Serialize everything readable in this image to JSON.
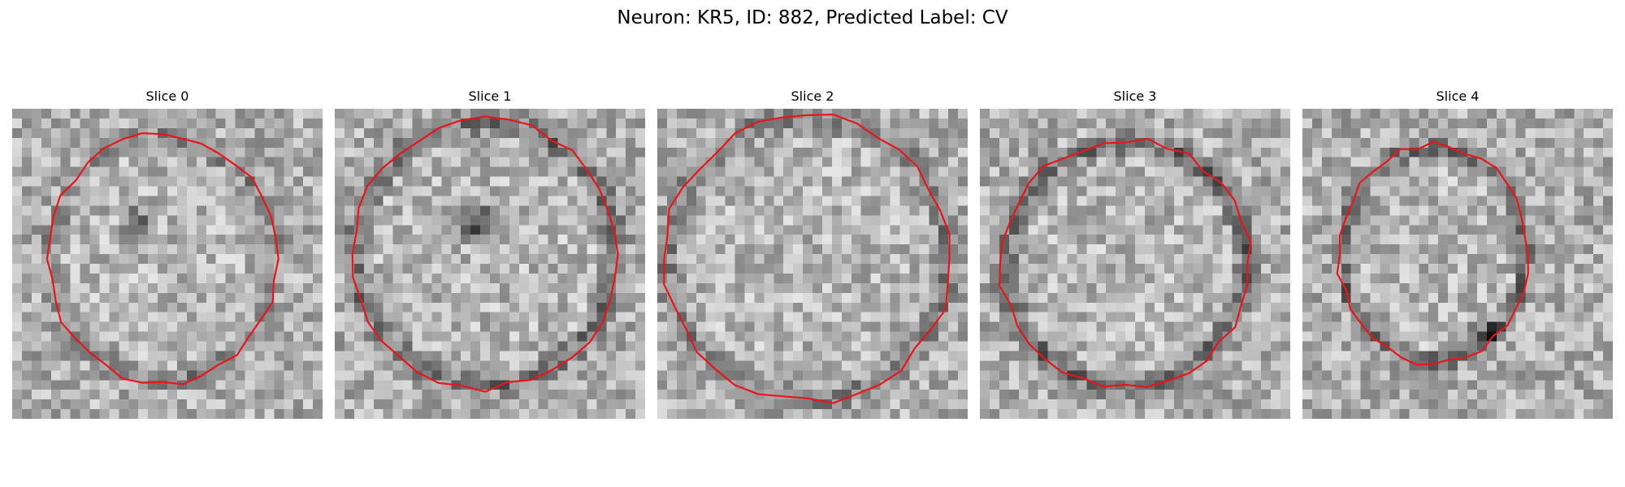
{
  "figure": {
    "title": "Neuron: KR5, ID: 882, Predicted Label: CV"
  },
  "panels": [
    {
      "title": "Slice 0"
    },
    {
      "title": "Slice 1"
    },
    {
      "title": "Slice 2"
    },
    {
      "title": "Slice 3"
    },
    {
      "title": "Slice 4"
    }
  ],
  "colors": {
    "contour": "#e8161b"
  }
}
